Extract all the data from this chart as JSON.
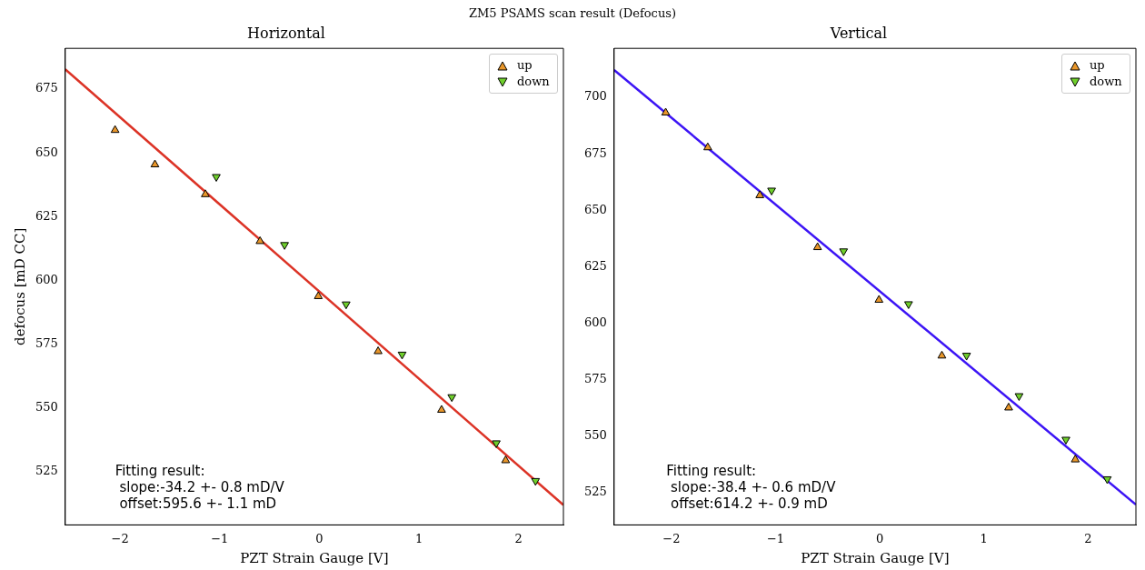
{
  "chart_data": [
    {
      "type": "scatter",
      "title": "Horizontal",
      "xlabel": "PZT Strain Gauge [V]",
      "ylabel": "defocus [mD CC]",
      "annotations": [
        "ZM5 PSAMS scan result (Defocus)",
        "Fitting result:\n slope:-34.2 +- 0.8 mD/V\n offset:595.6 +- 1.1 mD"
      ],
      "xlim": [
        -2.55,
        2.45
      ],
      "ylim": [
        504,
        691
      ],
      "xticks": [
        -2,
        -1,
        0,
        1,
        2
      ],
      "yticks": [
        525,
        550,
        575,
        600,
        625,
        650,
        675
      ],
      "grid": false,
      "legend": "top right",
      "marker": "triangle",
      "series": [
        {
          "name": "up",
          "color": "#e8962a",
          "x": [
            -2.05,
            -1.65,
            -1.144,
            -0.595,
            -0.01,
            0.59,
            1.227,
            1.87
          ],
          "values": [
            658.9,
            645.4,
            633.7,
            615.3,
            593.7,
            572.1,
            549.1,
            529.3
          ]
        },
        {
          "name": "down",
          "color": "#6fcf2c",
          "x": [
            -1.034,
            -0.349,
            0.269,
            0.831,
            1.33,
            1.776,
            2.17
          ],
          "values": [
            640.6,
            613.9,
            590.6,
            570.9,
            554.2,
            536.1,
            521.3
          ]
        },
        {
          "type": "line",
          "color": "#dc3326",
          "marker": "none",
          "x": [
            -2.55,
            2.45
          ],
          "values": [
            682.8,
            511.8
          ]
        }
      ]
    },
    {
      "type": "scatter",
      "title": "Vertical",
      "xlabel": "PZT Strain Gauge [V]",
      "annotations": [
        "Fitting result:\n slope:-38.4 +- 0.6 mD/V\n offset:614.2 +- 0.9 mD"
      ],
      "xlim": [
        -2.55,
        2.46
      ],
      "ylim": [
        510.7,
        721.7
      ],
      "xticks": [
        -2,
        -1,
        0,
        1,
        2
      ],
      "yticks": [
        525,
        550,
        575,
        600,
        625,
        650,
        675,
        700
      ],
      "grid": false,
      "legend": "top right",
      "marker": "triangle",
      "series": [
        {
          "name": "up",
          "color": "#e8962a",
          "x": [
            -2.055,
            -1.651,
            -1.151,
            -0.597,
            -0.007,
            0.597,
            1.238,
            1.878
          ],
          "values": [
            693.2,
            677.8,
            656.6,
            633.6,
            610.3,
            585.6,
            562.6,
            539.6
          ]
        },
        {
          "name": "down",
          "color": "#6fcf2c",
          "x": [
            -1.038,
            -0.347,
            0.277,
            0.834,
            1.338,
            1.788,
            2.185
          ],
          "values": [
            658.8,
            631.9,
            608.5,
            585.7,
            567.8,
            548.5,
            531.0
          ]
        },
        {
          "type": "line",
          "color": "#3c14f5",
          "marker": "none",
          "x": [
            -2.55,
            2.46
          ],
          "values": [
            712.1,
            519.7
          ]
        }
      ]
    }
  ]
}
